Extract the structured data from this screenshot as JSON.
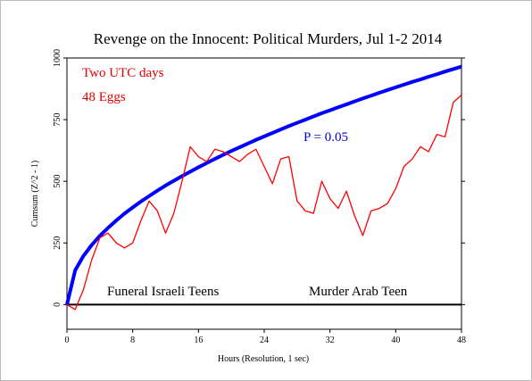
{
  "chart_data": {
    "type": "line",
    "title": "Revenge on the Innocent: Political Murders, Jul 1-2 2014",
    "x_label": "Hours (Resolution, 1 sec)",
    "y_label": "Cumsum (Z^2 - 1)",
    "annotations": [
      "Two UTC days",
      "48 Eggs",
      "P = 0.05",
      "Funeral Israeli Teens",
      "Murder Arab Teen"
    ],
    "x": [
      0,
      1,
      2,
      3,
      4,
      5,
      6,
      7,
      8,
      9,
      10,
      11,
      12,
      13,
      14,
      15,
      16,
      17,
      18,
      19,
      20,
      21,
      22,
      23,
      24,
      25,
      26,
      27,
      28,
      29,
      30,
      31,
      32,
      33,
      34,
      35,
      36,
      37,
      38,
      39,
      40,
      41,
      42,
      43,
      44,
      45,
      46,
      47,
      48
    ],
    "series": [
      {
        "color": "#ff0000",
        "values": [
          0,
          -20,
          60,
          180,
          270,
          290,
          250,
          230,
          250,
          340,
          420,
          380,
          290,
          370,
          500,
          640,
          600,
          580,
          630,
          620,
          600,
          580,
          610,
          630,
          560,
          490,
          590,
          600,
          420,
          380,
          370,
          500,
          430,
          390,
          460,
          360,
          280,
          380,
          390,
          410,
          470,
          560,
          590,
          640,
          620,
          690,
          680,
          820,
          850
        ]
      },
      {
        "color": "#0000ff",
        "values": [
          0,
          139,
          197,
          241,
          279,
          311,
          341,
          369,
          394,
          418,
          440,
          462,
          483,
          502,
          521,
          539,
          557,
          574,
          591,
          607,
          623,
          638,
          653,
          668,
          682,
          696,
          710,
          724,
          737,
          750,
          763,
          776,
          788,
          800,
          812,
          824,
          836,
          847,
          859,
          870,
          881,
          892,
          903,
          913,
          924,
          934,
          945,
          955,
          965
        ]
      }
    ],
    "xlim": [
      0,
      48
    ],
    "xticks": [
      0,
      8,
      16,
      24,
      32,
      40,
      48
    ],
    "ylim": [
      -100,
      1000
    ],
    "yticks": [
      0,
      250,
      500,
      750,
      1000
    ]
  }
}
